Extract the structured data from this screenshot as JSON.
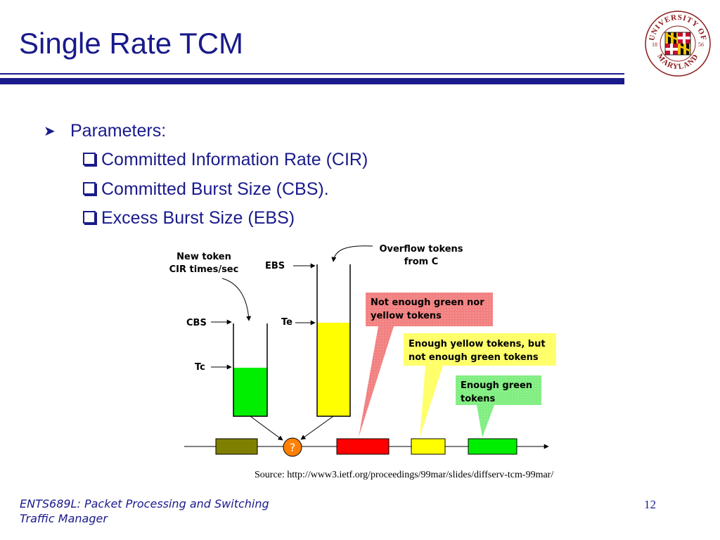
{
  "slide": {
    "title": "Single Rate TCM",
    "bullet": "Parameters:",
    "sub_bullets": [
      "Committed Information Rate (CIR)",
      "Committed Burst Size (CBS).",
      "Excess Burst Size (EBS)"
    ]
  },
  "logo": {
    "text_top": "UNIVERSITY OF",
    "text_bottom": "MARYLAND",
    "year_left": "18",
    "year_right": "56"
  },
  "diagram": {
    "new_token_line1": "New token",
    "new_token_line2": "CIR times/sec",
    "ebs_label": "EBS",
    "cbs_label": "CBS",
    "te_label": "Te",
    "tc_label": "Tc",
    "overflow_line1": "Overflow tokens",
    "overflow_line2": "from C",
    "decision_symbol": "?",
    "callout_red_line1": "Not enough green nor",
    "callout_red_line2": "yellow tokens",
    "callout_yellow_line1": "Enough yellow tokens, but",
    "callout_yellow_line2": "not enough green tokens",
    "callout_green_line1": "Enough green",
    "callout_green_line2": "tokens",
    "colors": {
      "green": "#00ee00",
      "yellow": "#ffff00",
      "red": "#ff0000",
      "olive": "#808000",
      "orange": "#ff8000",
      "callout_red": "#f28080",
      "callout_yellow": "#ffff66",
      "callout_green": "#80ee80"
    }
  },
  "source": "Source: http://www3.ietf.org/proceedings/99mar/slides/diffserv-tcm-99mar/",
  "footer": {
    "line1": "ENTS689L: Packet Processing and Switching",
    "line2": "Traffic Manager",
    "page_number": "12"
  }
}
